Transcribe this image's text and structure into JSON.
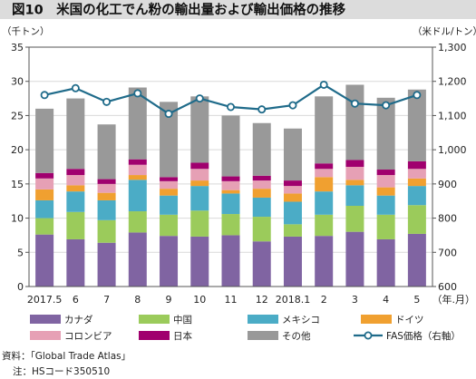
{
  "chart_data": {
    "type": "bar",
    "title": "図10　米国の化工でん粉の輸出量および輸出価格の推移",
    "y_left_unit": "（千トン）",
    "y_right_unit": "（米ドル/トン）",
    "x_unit": "（年.月）",
    "ylim_left": [
      0,
      35
    ],
    "ylim_right": [
      600,
      1300
    ],
    "yticks_left": [
      "0",
      "5",
      "10",
      "15",
      "20",
      "25",
      "30",
      "35"
    ],
    "yticks_right": [
      "600",
      "700",
      "800",
      "900",
      "1,000",
      "1,100",
      "1,200",
      "1,300"
    ],
    "categories": [
      "2017.5",
      "6",
      "7",
      "8",
      "9",
      "10",
      "11",
      "12",
      "2018.1",
      "2",
      "3",
      "4",
      "5"
    ],
    "stack_series": [
      {
        "name": "カナダ",
        "color": "#8064a2",
        "values": [
          7.6,
          6.9,
          6.4,
          7.9,
          7.4,
          7.3,
          7.5,
          6.6,
          7.3,
          7.4,
          8.0,
          6.9,
          7.7
        ]
      },
      {
        "name": "中国",
        "color": "#9bcb5b",
        "values": [
          2.4,
          4.0,
          3.3,
          3.1,
          3.1,
          3.8,
          3.1,
          3.6,
          1.8,
          3.1,
          3.8,
          3.6,
          4.2
        ]
      },
      {
        "name": "メキシコ",
        "color": "#4bacc6",
        "values": [
          2.6,
          3.0,
          2.9,
          4.6,
          2.8,
          3.6,
          3.0,
          2.8,
          3.3,
          3.4,
          3.0,
          2.8,
          2.8
        ]
      },
      {
        "name": "ドイツ",
        "color": "#f0a030",
        "values": [
          1.6,
          0.9,
          1.1,
          0.7,
          1.0,
          0.8,
          0.5,
          1.3,
          1.2,
          2.1,
          0.8,
          1.2,
          1.1
        ]
      },
      {
        "name": "コロンビア",
        "color": "#e6a0b5",
        "values": [
          1.6,
          1.5,
          1.3,
          1.5,
          1.1,
          1.7,
          1.3,
          1.2,
          1.1,
          1.2,
          1.9,
          1.8,
          1.4
        ]
      },
      {
        "name": "日本",
        "color": "#a0006e",
        "values": [
          0.8,
          0.9,
          0.7,
          0.8,
          0.6,
          0.9,
          0.7,
          0.7,
          0.8,
          0.8,
          1.0,
          0.8,
          1.1
        ]
      },
      {
        "name": "その他",
        "color": "#999999",
        "values": [
          9.4,
          10.3,
          8.0,
          10.5,
          11.0,
          9.7,
          8.9,
          7.7,
          7.6,
          9.8,
          11.0,
          10.5,
          10.5
        ]
      }
    ],
    "line_series": {
      "name": "FAS価格（右軸）",
      "color": "#1f6b8a",
      "axis": "right",
      "values": [
        1160,
        1180,
        1140,
        1165,
        1105,
        1150,
        1125,
        1118,
        1130,
        1190,
        1135,
        1130,
        1160
      ]
    },
    "legend": [
      {
        "name": "カナダ",
        "kind": "rect",
        "color": "#8064a2"
      },
      {
        "name": "中国",
        "kind": "rect",
        "color": "#9bcb5b"
      },
      {
        "name": "メキシコ",
        "kind": "rect",
        "color": "#4bacc6"
      },
      {
        "name": "ドイツ",
        "kind": "rect",
        "color": "#f0a030"
      },
      {
        "name": "コロンビア",
        "kind": "rect",
        "color": "#e6a0b5"
      },
      {
        "name": "日本",
        "kind": "rect",
        "color": "#a0006e"
      },
      {
        "name": "その他",
        "kind": "rect",
        "color": "#999999"
      },
      {
        "name": "FAS価格（右軸）",
        "kind": "line",
        "color": "#1f6b8a"
      }
    ],
    "grid": true,
    "legend_position": "bottom"
  },
  "notes": {
    "source": "資料：「Global Trade Atlas」",
    "note": "注：HSコード350510"
  }
}
